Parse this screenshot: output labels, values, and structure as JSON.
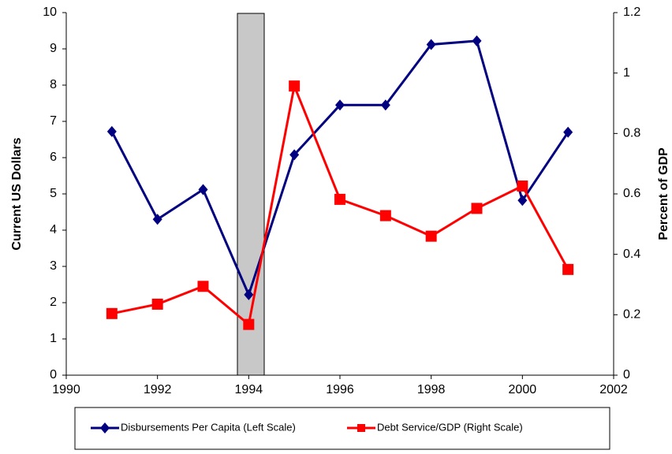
{
  "chart_data": {
    "type": "line",
    "x": [
      1991,
      1992,
      1993,
      1994,
      1995,
      1996,
      1997,
      1998,
      1999,
      2000,
      2001
    ],
    "series": [
      {
        "name": "Disbursements Per Capita (Left Scale)",
        "color": "#000080",
        "marker": "diamond",
        "values": [
          6.72,
          4.3,
          5.12,
          2.22,
          6.08,
          7.45,
          7.45,
          9.12,
          9.22,
          4.82,
          6.7
        ]
      },
      {
        "name": "Debt Service/GDP (Right Scale)",
        "color": "#ff0000",
        "marker": "square",
        "axis": "y2",
        "values": [
          0.204,
          0.235,
          0.294,
          0.168,
          0.957,
          0.582,
          0.528,
          0.46,
          0.552,
          0.626,
          0.35
        ]
      }
    ],
    "y_label": "Current US Dollars",
    "y2_label": "Percent of GDP",
    "xlim": [
      1990,
      2002
    ],
    "xticks": [
      1990,
      1992,
      1994,
      1996,
      1998,
      2000,
      2002
    ],
    "ylim": [
      0,
      10
    ],
    "yticks": [
      0,
      1,
      2,
      3,
      4,
      5,
      6,
      7,
      8,
      9,
      10
    ],
    "y2lim": [
      0,
      1.2
    ],
    "y2ticks": [
      0,
      0.2,
      0.4,
      0.6,
      0.8,
      1,
      1.2
    ],
    "grid": false,
    "legend": "bottom"
  }
}
